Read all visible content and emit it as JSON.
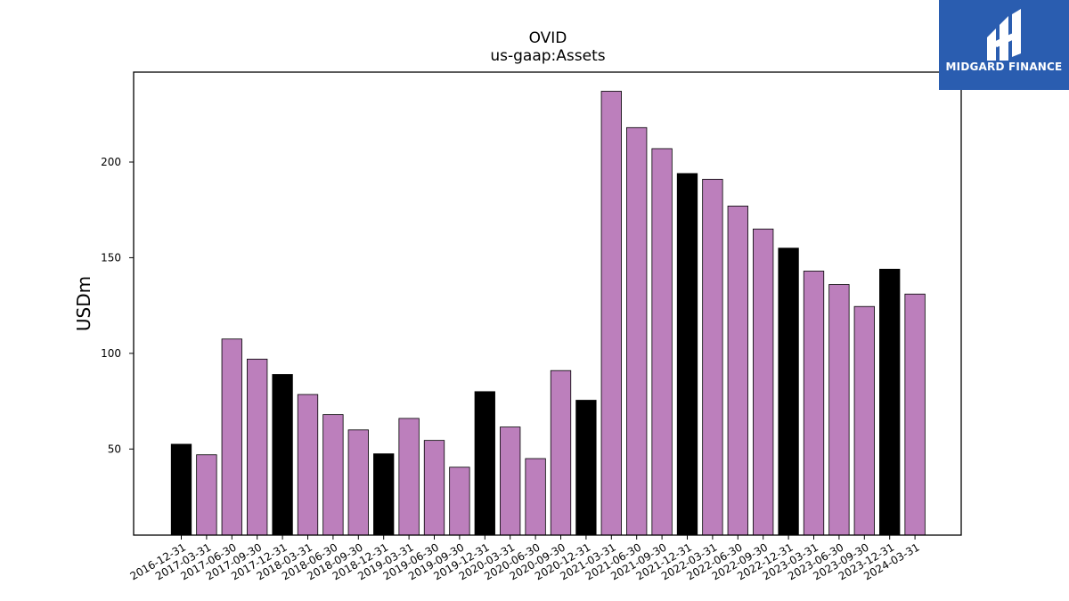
{
  "chart_data": {
    "type": "bar",
    "title": "OVID",
    "subtitle": "us-gaap:Assets",
    "xlabel": "",
    "ylabel": "USDm",
    "ylim": [
      5,
      247
    ],
    "yticks": [
      50,
      100,
      150,
      200
    ],
    "grid": false,
    "legend": "none",
    "categories": [
      "2016-12-31",
      "2017-03-31",
      "2017-06-30",
      "2017-09-30",
      "2017-12-31",
      "2018-03-31",
      "2018-06-30",
      "2018-09-30",
      "2018-12-31",
      "2019-03-31",
      "2019-06-30",
      "2019-09-30",
      "2019-12-31",
      "2020-03-31",
      "2020-06-30",
      "2020-09-30",
      "2020-12-31",
      "2021-03-31",
      "2021-06-30",
      "2021-09-30",
      "2021-12-31",
      "2022-03-31",
      "2022-06-30",
      "2022-09-30",
      "2022-12-31",
      "2023-03-31",
      "2023-06-30",
      "2023-09-30",
      "2023-12-31",
      "2024-03-31"
    ],
    "values": [
      52.5,
      47,
      107.5,
      97,
      89,
      78.5,
      68,
      60,
      47.5,
      66,
      54.5,
      40.5,
      80,
      61.5,
      45,
      91,
      75.5,
      237,
      218,
      207,
      194,
      191,
      177,
      165,
      155,
      143,
      136,
      124.5,
      144,
      131
    ],
    "colors": {
      "quarter": "#bc7fbc",
      "year_end": "#000000",
      "edge": "#000000"
    },
    "highlight_categories": [
      "2016-12-31",
      "2017-12-31",
      "2018-12-31",
      "2019-12-31",
      "2020-12-31",
      "2021-12-31",
      "2022-12-31",
      "2023-12-31"
    ]
  },
  "logo": {
    "text": "MIDGARD FINANCE",
    "background": "#2a5db0"
  }
}
